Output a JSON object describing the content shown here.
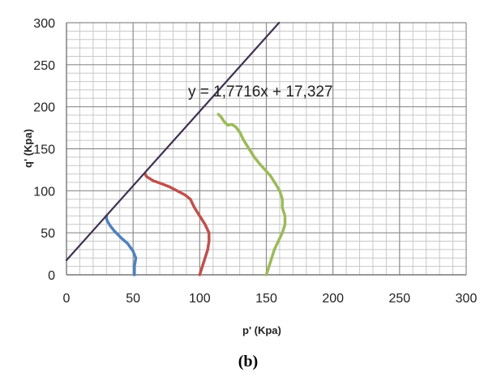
{
  "chart_data": {
    "type": "line",
    "xlabel": "p' (Kpa)",
    "ylabel": "q' (Kpa)",
    "xlim": [
      0,
      300
    ],
    "ylim": [
      0,
      300
    ],
    "xticks": [
      0,
      50,
      100,
      150,
      200,
      250,
      300
    ],
    "yticks": [
      0,
      50,
      100,
      150,
      200,
      250,
      300
    ],
    "grid": true,
    "annotation": "y = 1,7716x + 17,327",
    "panel_label": "(b)",
    "series": [
      {
        "color": "#4F81BD",
        "points": [
          [
            51,
            0
          ],
          [
            51,
            10
          ],
          [
            52,
            20
          ],
          [
            50,
            28
          ],
          [
            46,
            37
          ],
          [
            41,
            44
          ],
          [
            36,
            52
          ],
          [
            33,
            58
          ],
          [
            31,
            63
          ],
          [
            30,
            67
          ],
          [
            30,
            70
          ]
        ]
      },
      {
        "color": "#C0504D",
        "points": [
          [
            100,
            0
          ],
          [
            102,
            10
          ],
          [
            104,
            20
          ],
          [
            106,
            30
          ],
          [
            107,
            40
          ],
          [
            107,
            50
          ],
          [
            104,
            60
          ],
          [
            100,
            70
          ],
          [
            96,
            80
          ],
          [
            93,
            90
          ],
          [
            89,
            95
          ],
          [
            83,
            100
          ],
          [
            77,
            105
          ],
          [
            72,
            108
          ],
          [
            65,
            112
          ],
          [
            60,
            117
          ],
          [
            59,
            120
          ]
        ]
      },
      {
        "color": "#9BBB59",
        "points": [
          [
            150,
            0
          ],
          [
            152,
            10
          ],
          [
            154,
            20
          ],
          [
            156,
            30
          ],
          [
            159,
            40
          ],
          [
            162,
            50
          ],
          [
            164,
            60
          ],
          [
            164,
            70
          ],
          [
            162,
            80
          ],
          [
            162,
            90
          ],
          [
            160,
            100
          ],
          [
            157,
            108
          ],
          [
            153,
            118
          ],
          [
            149,
            125
          ],
          [
            145,
            132
          ],
          [
            141,
            140
          ],
          [
            137,
            150
          ],
          [
            133,
            160
          ],
          [
            130,
            170
          ],
          [
            127,
            176
          ],
          [
            124,
            179
          ],
          [
            121,
            178
          ],
          [
            118,
            183
          ],
          [
            116,
            188
          ],
          [
            114,
            191
          ]
        ]
      },
      {
        "color": "#403152",
        "type": "trendline",
        "slope": 1.7716,
        "intercept": 17.327,
        "points": [
          [
            0,
            17.327
          ],
          [
            159.56,
            300
          ]
        ]
      }
    ]
  }
}
